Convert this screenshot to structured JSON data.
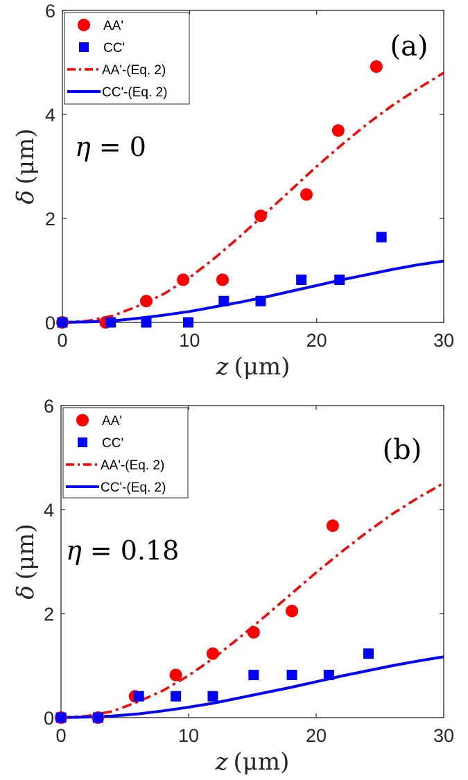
{
  "chart_data": [
    {
      "type": "line",
      "panel_label": "(a)",
      "annotation_symbol": "η",
      "annotation_value": "= 0",
      "xlabel_var": "z",
      "xlabel_unit": "(μm)",
      "ylabel_var": "δ",
      "ylabel_unit": "(μm)",
      "xlim": [
        0,
        30
      ],
      "ylim": [
        0,
        6
      ],
      "xticks": [
        "0",
        "10",
        "20",
        "30"
      ],
      "yticks": [
        "0",
        "2",
        "4",
        "6"
      ],
      "legend_position": "top-left",
      "grid": false,
      "series": [
        {
          "name": "AA'",
          "kind": "scatter",
          "marker": "circle",
          "color": "#ff0000",
          "x": [
            0,
            3.4,
            6.6,
            9.5,
            12.6,
            15.6,
            19.2,
            21.7,
            24.7
          ],
          "y": [
            0,
            0,
            0.41,
            0.82,
            0.82,
            2.05,
            2.46,
            3.69,
            4.92
          ]
        },
        {
          "name": "CC'",
          "kind": "scatter",
          "marker": "square",
          "color": "#0000ff",
          "x": [
            0,
            3.8,
            6.6,
            9.9,
            12.7,
            15.6,
            18.8,
            21.8,
            25.1
          ],
          "y": [
            0,
            0,
            0,
            0,
            0.41,
            0.41,
            0.82,
            0.82,
            1.64
          ]
        },
        {
          "name": "AA'-(Eq. 2)",
          "kind": "line",
          "style": "dashdot",
          "color": "#ff0000",
          "x": [
            0,
            2,
            4,
            6,
            8,
            10,
            12,
            14,
            16,
            18,
            20,
            22,
            24,
            26,
            28,
            30
          ],
          "y": [
            0,
            0.03,
            0.13,
            0.32,
            0.55,
            0.86,
            1.24,
            1.66,
            2.1,
            2.55,
            3.0,
            3.42,
            3.82,
            4.18,
            4.5,
            4.8
          ]
        },
        {
          "name": "CC'-(Eq. 2)",
          "kind": "line",
          "style": "solid",
          "color": "#0000ff",
          "x": [
            0,
            2,
            4,
            6,
            8,
            10,
            12,
            14,
            16,
            18,
            20,
            22,
            24,
            26,
            28,
            30
          ],
          "y": [
            0,
            0.01,
            0.03,
            0.08,
            0.14,
            0.21,
            0.3,
            0.39,
            0.49,
            0.6,
            0.71,
            0.82,
            0.92,
            1.02,
            1.11,
            1.18
          ]
        }
      ]
    },
    {
      "type": "line",
      "panel_label": "(b)",
      "annotation_symbol": "η",
      "annotation_value": "= 0.18",
      "xlabel_var": "z",
      "xlabel_unit": "(μm)",
      "ylabel_var": "δ",
      "ylabel_unit": "(μm)",
      "xlim": [
        0,
        30
      ],
      "ylim": [
        0,
        6
      ],
      "xticks": [
        "0",
        "10",
        "20",
        "30"
      ],
      "yticks": [
        "0",
        "2",
        "4",
        "6"
      ],
      "legend_position": "top-left",
      "grid": false,
      "series": [
        {
          "name": "AA'",
          "kind": "scatter",
          "marker": "circle",
          "color": "#ff0000",
          "x": [
            0,
            2.9,
            5.8,
            9.0,
            11.9,
            15.1,
            18.1,
            21.3
          ],
          "y": [
            0,
            0,
            0.41,
            0.82,
            1.23,
            1.64,
            2.05,
            3.69
          ]
        },
        {
          "name": "CC'",
          "kind": "scatter",
          "marker": "square",
          "color": "#0000ff",
          "x": [
            0,
            2.9,
            6.1,
            9.0,
            11.9,
            15.1,
            18.1,
            21.0,
            24.1
          ],
          "y": [
            0,
            0,
            0.41,
            0.41,
            0.41,
            0.82,
            0.82,
            0.82,
            1.23
          ]
        },
        {
          "name": "AA'-(Eq. 2)",
          "kind": "line",
          "style": "dashdot",
          "color": "#ff0000",
          "x": [
            0,
            2,
            4,
            6,
            8,
            10,
            12,
            14,
            16,
            18,
            20,
            22,
            24,
            26,
            28,
            30
          ],
          "y": [
            0,
            0.03,
            0.12,
            0.3,
            0.52,
            0.81,
            1.15,
            1.54,
            1.95,
            2.37,
            2.79,
            3.19,
            3.57,
            3.92,
            4.23,
            4.51
          ]
        },
        {
          "name": "CC'-(Eq. 2)",
          "kind": "line",
          "style": "solid",
          "color": "#0000ff",
          "x": [
            0,
            2,
            4,
            6,
            8,
            10,
            12,
            14,
            16,
            18,
            20,
            22,
            24,
            26,
            28,
            30
          ],
          "y": [
            0,
            0.01,
            0.03,
            0.07,
            0.13,
            0.2,
            0.28,
            0.38,
            0.48,
            0.58,
            0.69,
            0.8,
            0.9,
            1.0,
            1.09,
            1.17
          ]
        }
      ]
    }
  ]
}
